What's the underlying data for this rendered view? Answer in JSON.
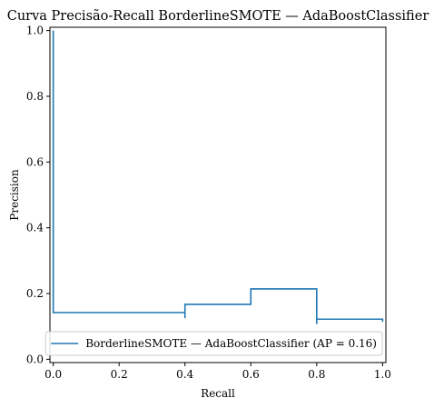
{
  "chart_data": {
    "type": "line",
    "title": "Curva Precisão-Recall BorderlineSMOTE — AdaBoostClassifier",
    "xlabel": "Recall",
    "ylabel": "Precision",
    "xlim": [
      -0.01,
      1.01
    ],
    "ylim": [
      -0.01,
      1.01
    ],
    "xticks": [
      0.0,
      0.2,
      0.4,
      0.6,
      0.8,
      1.0
    ],
    "xtick_labels": [
      "0.0",
      "0.2",
      "0.4",
      "0.6",
      "0.8",
      "1.0"
    ],
    "yticks": [
      0.0,
      0.2,
      0.4,
      0.6,
      0.8,
      1.0
    ],
    "ytick_labels": [
      "0.0",
      "0.2",
      "0.4",
      "0.6",
      "0.8",
      "1.0"
    ],
    "grid": false,
    "legend_position": "lower-right",
    "series": [
      {
        "name": "BorderlineSMOTE — AdaBoostClassifier (AP = 0.16)",
        "color": "#1f77b4",
        "drawstyle": "steps-post",
        "points": [
          [
            0.0,
            1.0
          ],
          [
            0.0,
            0.142
          ],
          [
            0.4,
            0.142
          ],
          [
            0.4,
            0.125
          ],
          [
            0.4,
            0.167
          ],
          [
            0.6,
            0.167
          ],
          [
            0.6,
            0.214
          ],
          [
            0.8,
            0.214
          ],
          [
            0.8,
            0.107
          ],
          [
            0.8,
            0.122
          ],
          [
            1.0,
            0.122
          ],
          [
            1.0,
            0.114
          ]
        ]
      }
    ]
  }
}
